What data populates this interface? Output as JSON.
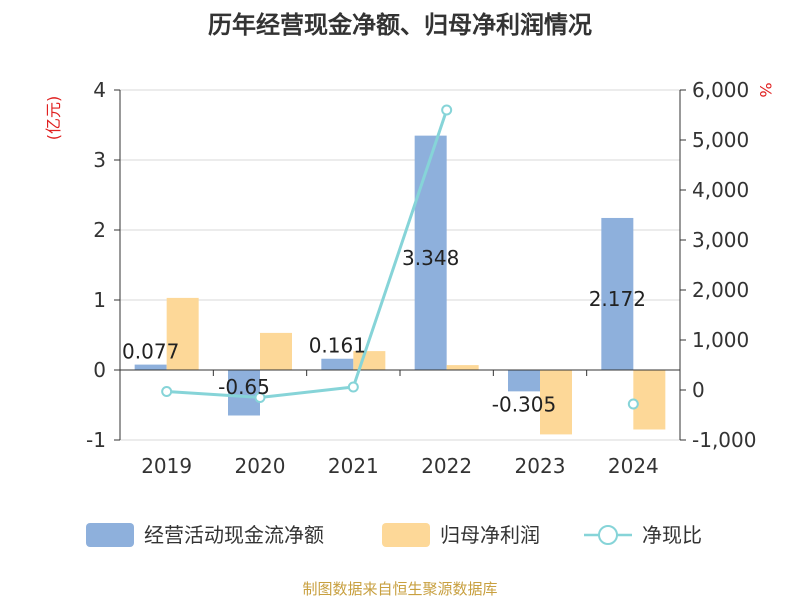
{
  "chart_data": {
    "type": "bar",
    "title": "历年经营现金净额、归母净利润情况",
    "categories": [
      "2019",
      "2020",
      "2021",
      "2022",
      "2023",
      "2024"
    ],
    "y_left": {
      "unit": "(亿元)",
      "ylim": [
        -1,
        4
      ],
      "ticks": [
        4,
        3,
        2,
        1,
        0,
        -1
      ],
      "tick_labels": [
        "4",
        "3",
        "2",
        "1",
        "0",
        "-1"
      ]
    },
    "y_right": {
      "unit": "%",
      "ylim": [
        -1000,
        6000
      ],
      "ticks": [
        6000,
        5000,
        4000,
        3000,
        2000,
        1000,
        0,
        -1000
      ],
      "tick_labels": [
        "6,000",
        "5,000",
        "4,000",
        "3,000",
        "2,000",
        "1,000",
        "0",
        "-1,000"
      ]
    },
    "series": [
      {
        "name": "经营活动现金流净额",
        "kind": "bar",
        "axis": "left",
        "color": "#8eb0dc",
        "values": [
          0.077,
          -0.65,
          0.161,
          3.348,
          -0.305,
          2.172
        ],
        "data_labels": [
          "0.077",
          "-0.65",
          "0.161",
          "3.348",
          "-0.305",
          "2.172"
        ]
      },
      {
        "name": "归母净利润",
        "kind": "bar",
        "axis": "left",
        "color": "#fdd898",
        "values": [
          1.03,
          0.53,
          0.27,
          0.07,
          -0.92,
          -0.85
        ]
      },
      {
        "name": "净现比",
        "kind": "line",
        "axis": "right",
        "color": "#86d4d8",
        "values": [
          -30,
          -150,
          60,
          5600,
          null,
          -280
        ]
      }
    ],
    "grid": true,
    "legend_position": "bottom"
  },
  "source": "制图数据来自恒生聚源数据库"
}
